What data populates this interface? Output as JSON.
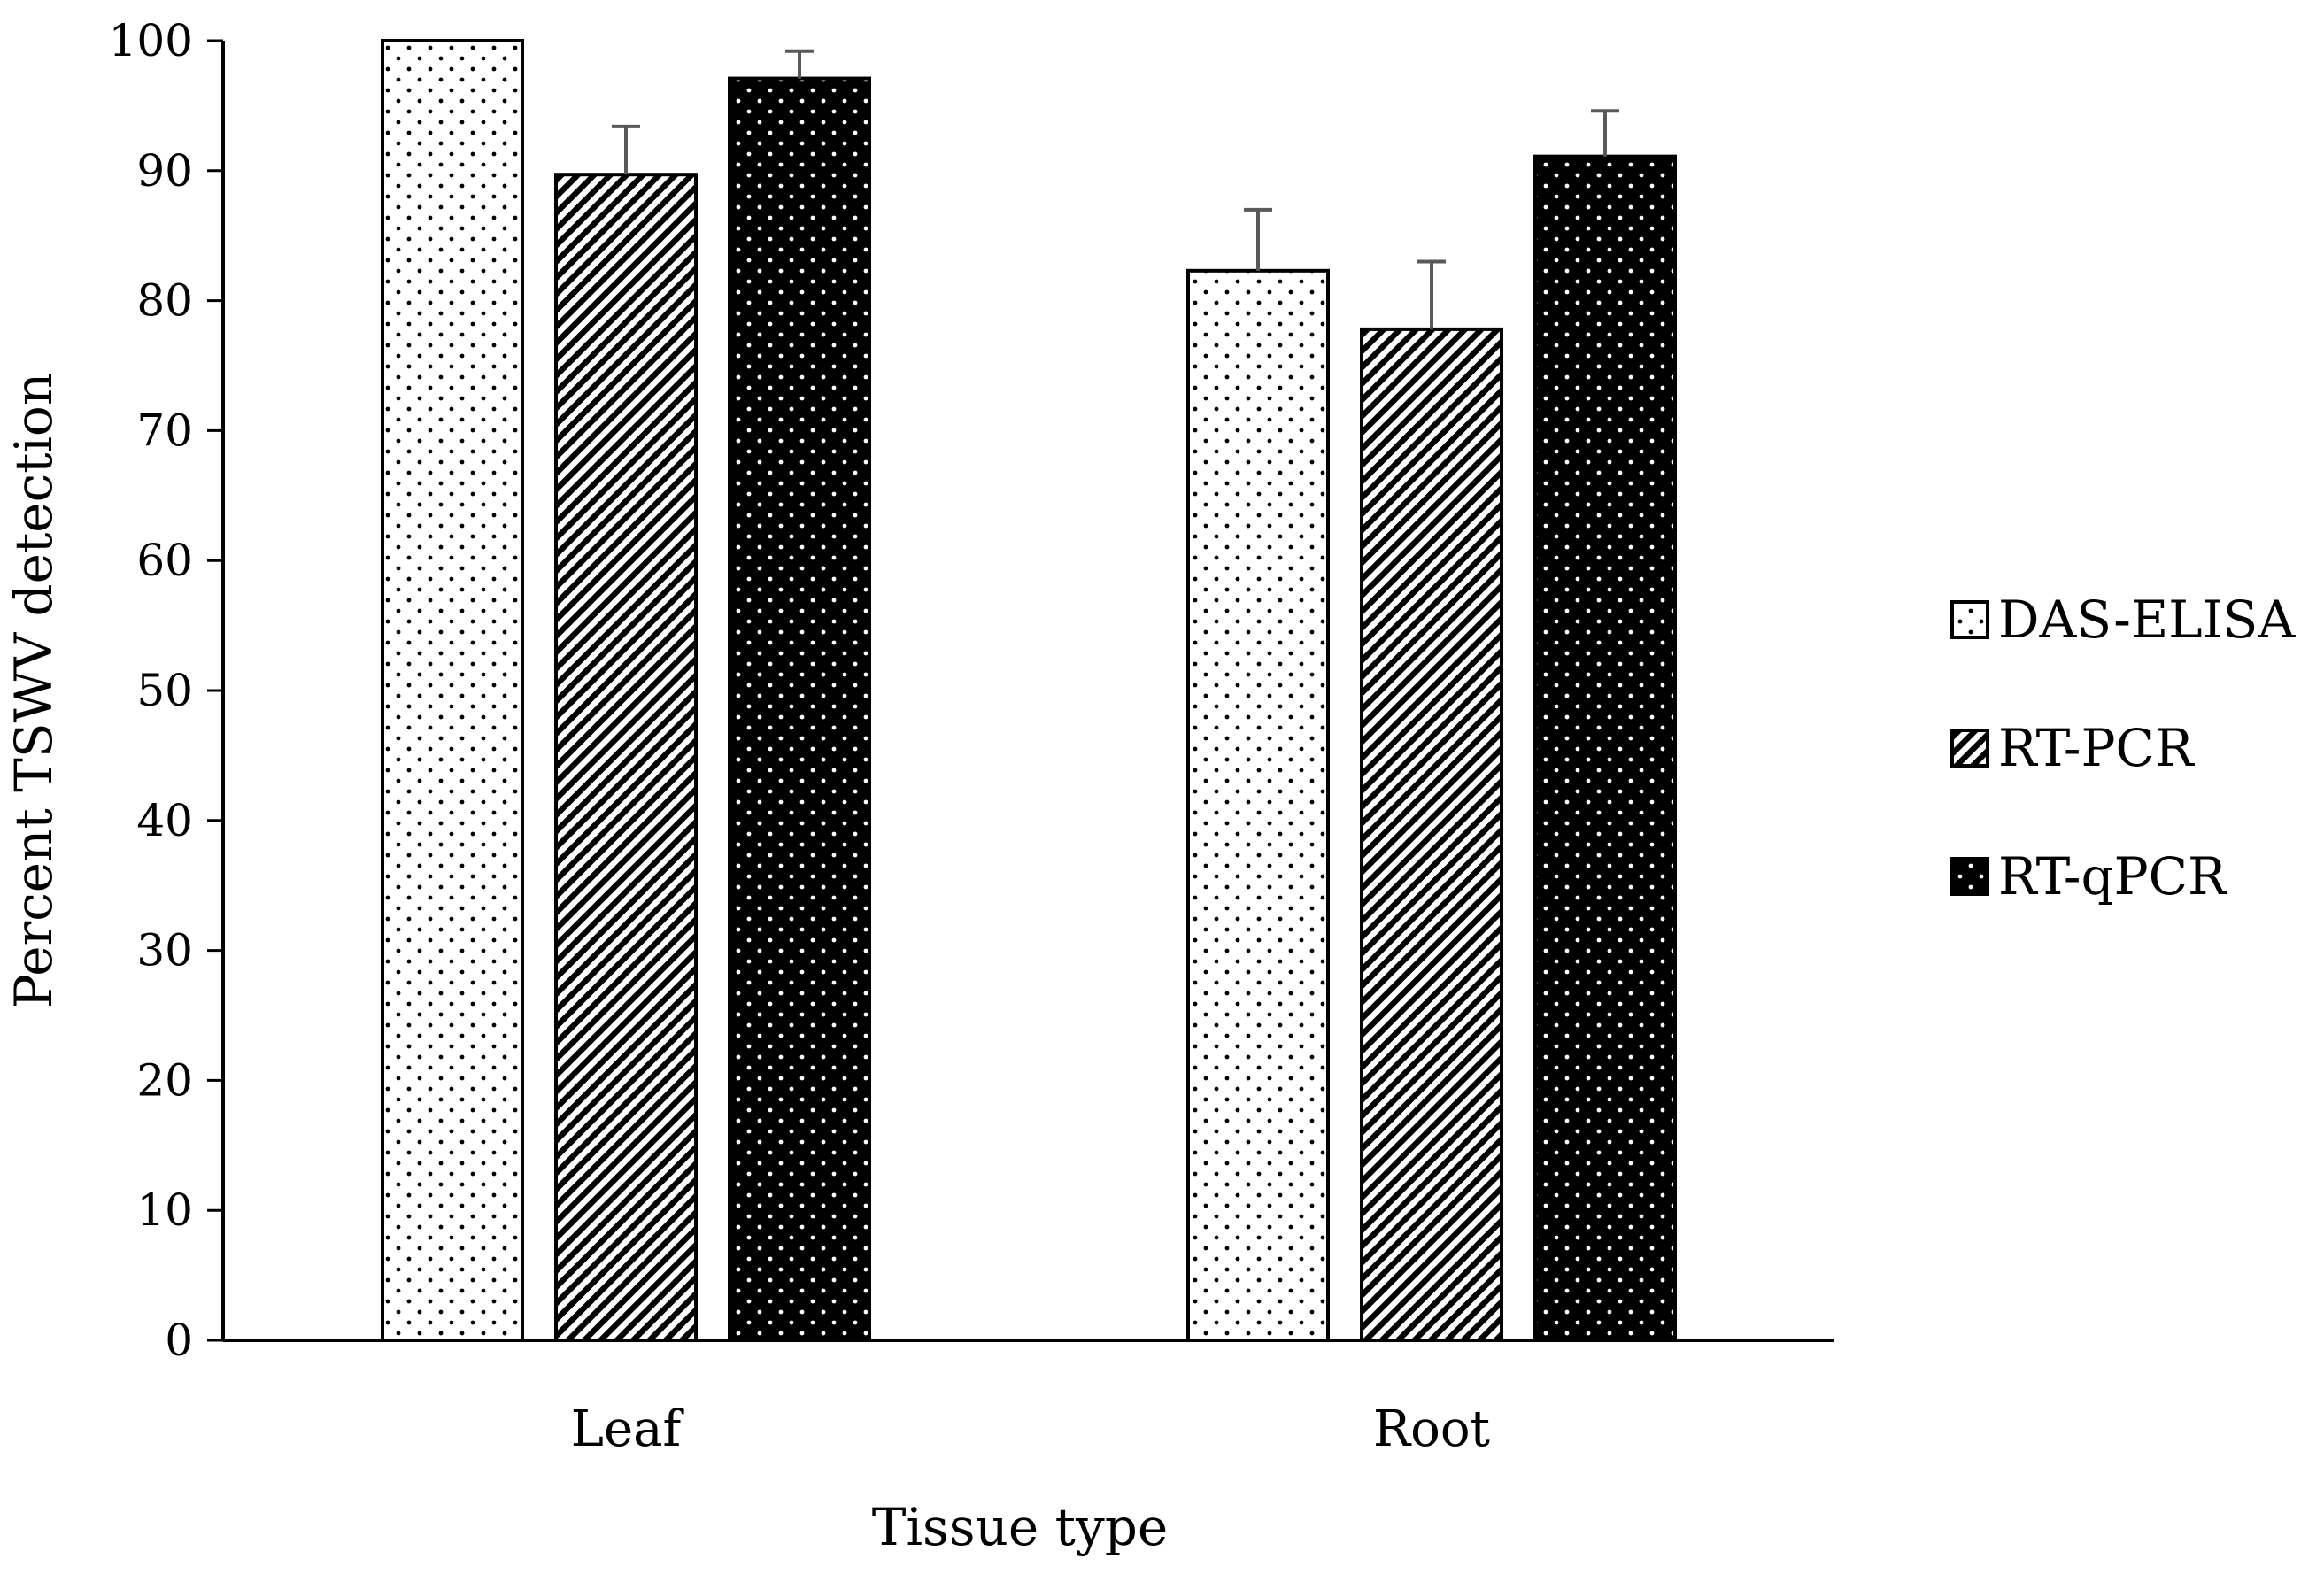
{
  "chart_data": {
    "type": "bar",
    "title": "",
    "xlabel": "Tissue type",
    "ylabel": "Percent TSWV detection",
    "categories": [
      "Leaf",
      "Root"
    ],
    "ylim": [
      0,
      100
    ],
    "yticks": [
      0,
      10,
      20,
      30,
      40,
      50,
      60,
      70,
      80,
      90,
      100
    ],
    "grid": false,
    "legend_position": "right",
    "series": [
      {
        "name": "DAS-ELISA",
        "pattern": "sparse-dots",
        "values": [
          100,
          82.3
        ],
        "errors": [
          0,
          4.7
        ]
      },
      {
        "name": "RT-PCR",
        "pattern": "diagonal-stripes",
        "values": [
          89.7,
          77.8
        ],
        "errors": [
          3.7,
          5.2
        ]
      },
      {
        "name": "RT-qPCR",
        "pattern": "black-dots",
        "values": [
          97.1,
          91.1
        ],
        "errors": [
          2.1,
          3.5
        ]
      }
    ],
    "colors": {
      "fill_light": "#ffffff",
      "fill_dark": "#000000",
      "error_bar": "#595959"
    }
  }
}
